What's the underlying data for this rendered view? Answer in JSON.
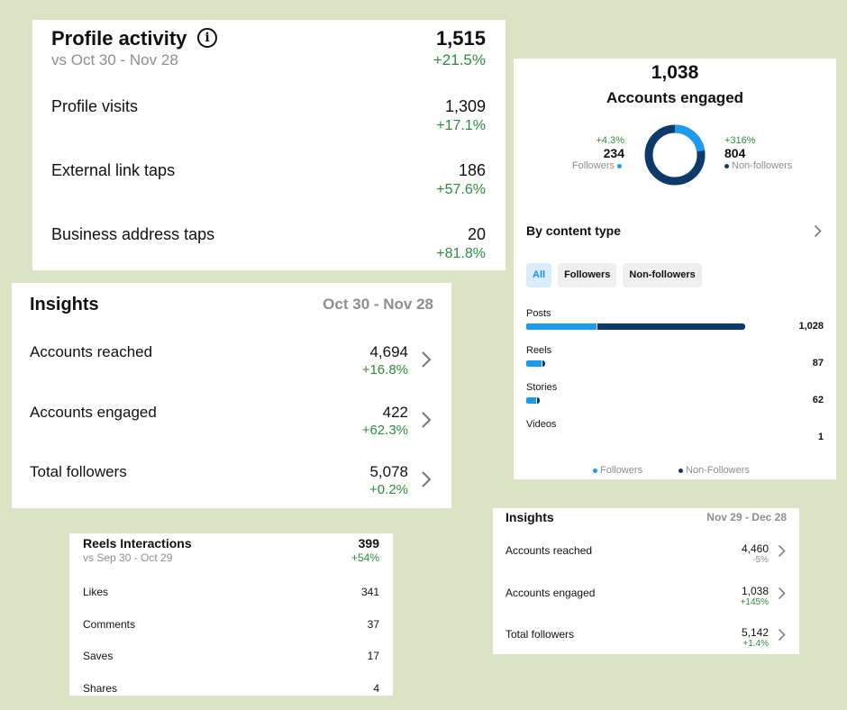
{
  "profile_activity": {
    "title": "Profile activity",
    "info_icon": "info-icon",
    "comparison": "vs Oct 30 - Nov 28",
    "total": "1,515",
    "total_change": "+21.5%",
    "rows": [
      {
        "label": "Profile visits",
        "value": "1,309",
        "change": "+17.1%"
      },
      {
        "label": "External link taps",
        "value": "186",
        "change": "+57.6%"
      },
      {
        "label": "Business address taps",
        "value": "20",
        "change": "+81.8%"
      }
    ]
  },
  "insights_large": {
    "title": "Insights",
    "date_range": "Oct 30 - Nov 28",
    "rows": [
      {
        "label": "Accounts reached",
        "value": "4,694",
        "change": "+16.8%"
      },
      {
        "label": "Accounts engaged",
        "value": "422",
        "change": "+62.3%"
      },
      {
        "label": "Total followers",
        "value": "5,078",
        "change": "+0.2%"
      }
    ]
  },
  "accounts_engaged": {
    "total": "1,038",
    "label": "Accounts engaged",
    "followers": {
      "change": "+4.3%",
      "value": "234",
      "label": "Followers",
      "count": 234
    },
    "non_followers": {
      "change": "+316%",
      "value": "804",
      "label": "Non-followers",
      "count": 804
    },
    "by_content_type": "By content type",
    "tabs": [
      "All",
      "Followers",
      "Non-followers"
    ],
    "active_tab": "All",
    "content_rows": [
      {
        "label": "Posts",
        "value": "1,028",
        "total": 1028,
        "followers_share": 0.32
      },
      {
        "label": "Reels",
        "value": "87",
        "total": 87,
        "followers_share": 0.85
      },
      {
        "label": "Stories",
        "value": "62",
        "total": 62,
        "followers_share": 0.75
      },
      {
        "label": "Videos",
        "value": "1",
        "total": 1,
        "followers_share": 0.0
      }
    ],
    "legend": {
      "followers": "Followers",
      "non_followers": "Non-Followers"
    },
    "colors": {
      "followers": "#1d9bf0",
      "non_followers": "#0c3a6b"
    }
  },
  "reels_interactions": {
    "title": "Reels Interactions",
    "comparison": "vs Sep 30 - Oct 29",
    "total": "399",
    "total_change": "+54%",
    "rows": [
      {
        "label": "Likes",
        "value": "341"
      },
      {
        "label": "Comments",
        "value": "37"
      },
      {
        "label": "Saves",
        "value": "17"
      },
      {
        "label": "Shares",
        "value": "4"
      }
    ]
  },
  "insights_small": {
    "title": "Insights",
    "date_range": "Nov 29 - Dec 28",
    "rows": [
      {
        "label": "Accounts reached",
        "value": "4,460",
        "change": "-5%"
      },
      {
        "label": "Accounts engaged",
        "value": "1,038",
        "change": "+145%"
      },
      {
        "label": "Total followers",
        "value": "5,142",
        "change": "+1.4%"
      }
    ]
  }
}
